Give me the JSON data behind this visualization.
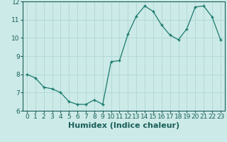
{
  "x": [
    0,
    1,
    2,
    3,
    4,
    5,
    6,
    7,
    8,
    9,
    10,
    11,
    12,
    13,
    14,
    15,
    16,
    17,
    18,
    19,
    20,
    21,
    22,
    23
  ],
  "y": [
    8.0,
    7.8,
    7.3,
    7.2,
    7.0,
    6.5,
    6.35,
    6.35,
    6.6,
    6.35,
    8.7,
    8.75,
    10.2,
    11.2,
    11.75,
    11.45,
    10.7,
    10.15,
    9.9,
    10.5,
    11.7,
    11.75,
    11.15,
    9.9
  ],
  "xlabel": "Humidex (Indice chaleur)",
  "ylim": [
    6,
    12
  ],
  "xlim": [
    -0.5,
    23.5
  ],
  "yticks": [
    6,
    7,
    8,
    9,
    10,
    11,
    12
  ],
  "xticks": [
    0,
    1,
    2,
    3,
    4,
    5,
    6,
    7,
    8,
    9,
    10,
    11,
    12,
    13,
    14,
    15,
    16,
    17,
    18,
    19,
    20,
    21,
    22,
    23
  ],
  "line_color": "#1a7a6e",
  "marker": "+",
  "bg_color": "#cceae7",
  "grid_color": "#b0d8d4",
  "xlabel_fontsize": 8,
  "tick_fontsize": 6.5,
  "label_color": "#1a5f5a"
}
